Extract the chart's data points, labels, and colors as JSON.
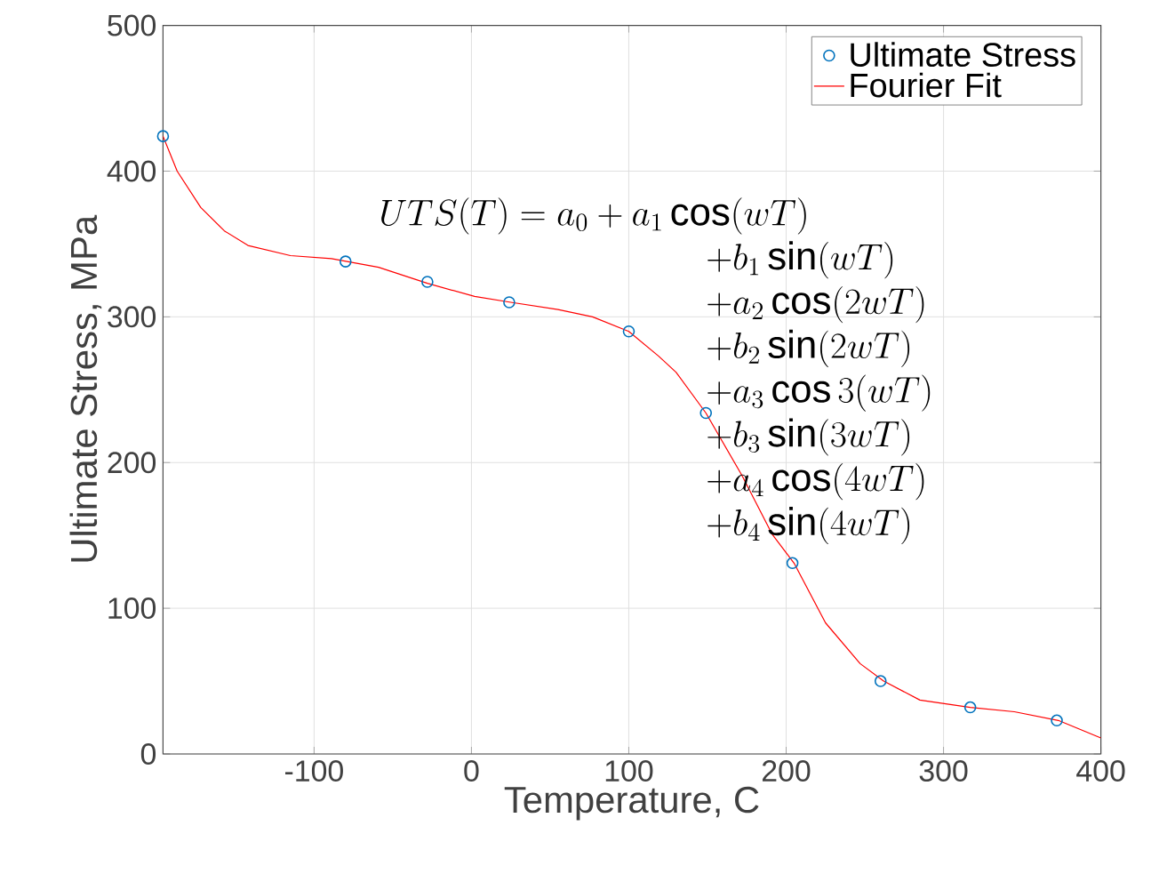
{
  "chart_data": {
    "type": "scatter",
    "xlabel": "Temperature, C",
    "ylabel": "Ultimate Stress, MPa",
    "xlim": [
      -196,
      400
    ],
    "ylim": [
      0,
      500
    ],
    "xticks": [
      -100,
      0,
      100,
      200,
      300,
      400
    ],
    "yticks": [
      0,
      100,
      200,
      300,
      400,
      500
    ],
    "grid": true,
    "legend": "top right",
    "series": [
      {
        "name": "Ultimate Stress",
        "marker": "circle",
        "color": "#0072bd",
        "x": [
          -196,
          -80,
          -28,
          24,
          100,
          149,
          204,
          260,
          317,
          372
        ],
        "values": [
          424,
          338,
          324,
          310,
          290,
          234,
          131,
          50,
          32,
          23
        ]
      },
      {
        "name": "Fourier Fit",
        "type": "line",
        "color": "#ff0000",
        "x": [
          -196,
          -187,
          -172,
          -157,
          -142,
          -115,
          -89,
          -59,
          -28,
          2,
          25,
          55,
          77,
          100,
          119,
          130,
          149,
          172,
          191,
          205,
          225,
          247,
          262,
          285,
          317,
          345,
          373,
          400
        ],
        "values": [
          424,
          400,
          375,
          359,
          349,
          342,
          340,
          334,
          323,
          314,
          310,
          305,
          300,
          290,
          273,
          262,
          234,
          191,
          151,
          131,
          90,
          62,
          50,
          37,
          32,
          29,
          23,
          11
        ]
      }
    ],
    "annotations": [
      "UTS(T) = a_0 + a_1\\cos(wT)",
      "+ b_1\\sin(wT)",
      "+ a_2\\cos(2wT)",
      "+ b_2\\sin(2wT)",
      "+ a_3\\cos3(wT)",
      "+ b_3\\sin(3wT)",
      "+ a_4\\cos(4wT)",
      "+ b_4\\sin(4wT)"
    ]
  }
}
